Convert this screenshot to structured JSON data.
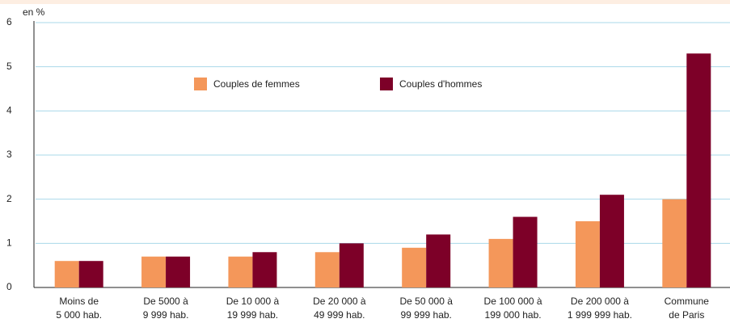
{
  "chart_data": {
    "type": "bar",
    "y_label": "en %",
    "categories": [
      [
        "Moins de",
        "5 000 hab."
      ],
      [
        "De 5000 à",
        "9 999 hab."
      ],
      [
        "De 10 000 à",
        "19 999 hab."
      ],
      [
        "De 20 000 à",
        "49 999 hab."
      ],
      [
        "De 50 000 à",
        "99 999 hab."
      ],
      [
        "De 100 000 à",
        "199 000 hab."
      ],
      [
        "De 200 000 à",
        "1 999 999 hab."
      ],
      [
        "Commune",
        "de Paris"
      ]
    ],
    "series": [
      {
        "name": "Couples de femmes",
        "color": "#f4975a",
        "values": [
          0.6,
          0.7,
          0.7,
          0.8,
          0.9,
          1.1,
          1.5,
          2.0
        ]
      },
      {
        "name": "Couples d'hommes",
        "color": "#7d0028",
        "values": [
          0.6,
          0.7,
          0.8,
          1.0,
          1.2,
          1.6,
          2.1,
          5.3
        ]
      }
    ],
    "ylim": [
      0,
      6
    ],
    "yticks": [
      0,
      1,
      2,
      3,
      4,
      5,
      6
    ],
    "grid": true
  }
}
